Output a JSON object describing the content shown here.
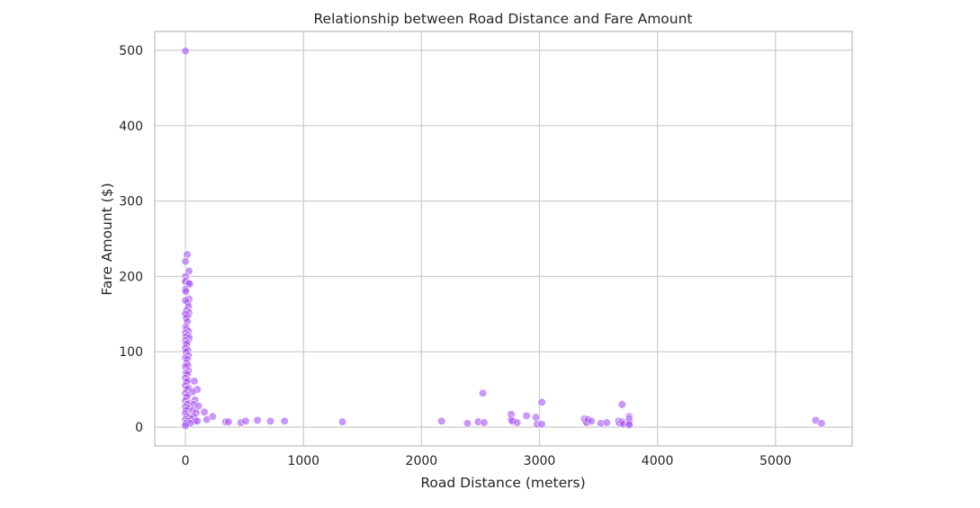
{
  "chart_data": {
    "type": "scatter",
    "title": "Relationship between Road Distance and Fare Amount",
    "xlabel": "Road Distance (meters)",
    "ylabel": "Fare Amount ($)",
    "xlim": [
      -260,
      5650
    ],
    "ylim": [
      -25,
      525
    ],
    "xticks": [
      0,
      1000,
      2000,
      3000,
      4000,
      5000
    ],
    "yticks": [
      0,
      100,
      200,
      300,
      400,
      500
    ],
    "grid": true,
    "point_color": "#a855f7",
    "points": [
      {
        "x": 0,
        "y": 499
      },
      {
        "x": 15,
        "y": 229
      },
      {
        "x": 0,
        "y": 220
      },
      {
        "x": 30,
        "y": 207
      },
      {
        "x": 0,
        "y": 200
      },
      {
        "x": 5,
        "y": 195
      },
      {
        "x": 0,
        "y": 193
      },
      {
        "x": 25,
        "y": 191
      },
      {
        "x": 35,
        "y": 190
      },
      {
        "x": 0,
        "y": 183
      },
      {
        "x": 3,
        "y": 180
      },
      {
        "x": 30,
        "y": 170
      },
      {
        "x": 20,
        "y": 165
      },
      {
        "x": 0,
        "y": 168
      },
      {
        "x": 25,
        "y": 160
      },
      {
        "x": 10,
        "y": 155
      },
      {
        "x": 30,
        "y": 152
      },
      {
        "x": 20,
        "y": 148
      },
      {
        "x": 0,
        "y": 150
      },
      {
        "x": 8,
        "y": 145
      },
      {
        "x": 15,
        "y": 140
      },
      {
        "x": 2,
        "y": 133
      },
      {
        "x": 10,
        "y": 130
      },
      {
        "x": 25,
        "y": 127
      },
      {
        "x": 0,
        "y": 125
      },
      {
        "x": 20,
        "y": 122
      },
      {
        "x": 5,
        "y": 120
      },
      {
        "x": 30,
        "y": 118
      },
      {
        "x": 0,
        "y": 115
      },
      {
        "x": 15,
        "y": 112
      },
      {
        "x": 8,
        "y": 110
      },
      {
        "x": 0,
        "y": 105
      },
      {
        "x": 20,
        "y": 102
      },
      {
        "x": 5,
        "y": 100
      },
      {
        "x": 25,
        "y": 95
      },
      {
        "x": 0,
        "y": 92
      },
      {
        "x": 15,
        "y": 90
      },
      {
        "x": 10,
        "y": 85
      },
      {
        "x": 20,
        "y": 82
      },
      {
        "x": 0,
        "y": 80
      },
      {
        "x": 25,
        "y": 75
      },
      {
        "x": 5,
        "y": 72
      },
      {
        "x": 15,
        "y": 70
      },
      {
        "x": 0,
        "y": 65
      },
      {
        "x": 20,
        "y": 62
      },
      {
        "x": 10,
        "y": 60
      },
      {
        "x": 75,
        "y": 61
      },
      {
        "x": 0,
        "y": 55
      },
      {
        "x": 25,
        "y": 52
      },
      {
        "x": 15,
        "y": 50
      },
      {
        "x": 100,
        "y": 50
      },
      {
        "x": 0,
        "y": 45
      },
      {
        "x": 60,
        "y": 47
      },
      {
        "x": 20,
        "y": 42
      },
      {
        "x": 10,
        "y": 40
      },
      {
        "x": 0,
        "y": 35
      },
      {
        "x": 80,
        "y": 36
      },
      {
        "x": 25,
        "y": 32
      },
      {
        "x": 15,
        "y": 30
      },
      {
        "x": 70,
        "y": 30
      },
      {
        "x": 0,
        "y": 27
      },
      {
        "x": 110,
        "y": 28
      },
      {
        "x": 20,
        "y": 25
      },
      {
        "x": 5,
        "y": 22
      },
      {
        "x": 60,
        "y": 22
      },
      {
        "x": 0,
        "y": 18
      },
      {
        "x": 90,
        "y": 19
      },
      {
        "x": 15,
        "y": 15
      },
      {
        "x": 30,
        "y": 13
      },
      {
        "x": 70,
        "y": 14
      },
      {
        "x": 0,
        "y": 10
      },
      {
        "x": 50,
        "y": 11
      },
      {
        "x": 20,
        "y": 8
      },
      {
        "x": 80,
        "y": 8
      },
      {
        "x": 5,
        "y": 5
      },
      {
        "x": 40,
        "y": 5
      },
      {
        "x": 0,
        "y": 2
      },
      {
        "x": 100,
        "y": 8
      },
      {
        "x": 160,
        "y": 20
      },
      {
        "x": 230,
        "y": 14
      },
      {
        "x": 180,
        "y": 10
      },
      {
        "x": 340,
        "y": 7
      },
      {
        "x": 365,
        "y": 7
      },
      {
        "x": 470,
        "y": 6
      },
      {
        "x": 510,
        "y": 8
      },
      {
        "x": 610,
        "y": 9
      },
      {
        "x": 720,
        "y": 8
      },
      {
        "x": 840,
        "y": 8
      },
      {
        "x": 1330,
        "y": 7
      },
      {
        "x": 2170,
        "y": 8
      },
      {
        "x": 2390,
        "y": 5
      },
      {
        "x": 2480,
        "y": 7
      },
      {
        "x": 2520,
        "y": 45
      },
      {
        "x": 2530,
        "y": 6
      },
      {
        "x": 2760,
        "y": 17
      },
      {
        "x": 2760,
        "y": 10
      },
      {
        "x": 2770,
        "y": 8
      },
      {
        "x": 2810,
        "y": 6
      },
      {
        "x": 2890,
        "y": 15
      },
      {
        "x": 2970,
        "y": 13
      },
      {
        "x": 2980,
        "y": 4
      },
      {
        "x": 3020,
        "y": 33
      },
      {
        "x": 3020,
        "y": 4
      },
      {
        "x": 3380,
        "y": 11
      },
      {
        "x": 3390,
        "y": 8
      },
      {
        "x": 3400,
        "y": 6
      },
      {
        "x": 3410,
        "y": 10
      },
      {
        "x": 3440,
        "y": 8
      },
      {
        "x": 3520,
        "y": 5
      },
      {
        "x": 3570,
        "y": 6
      },
      {
        "x": 3670,
        "y": 8
      },
      {
        "x": 3680,
        "y": 5
      },
      {
        "x": 3700,
        "y": 30
      },
      {
        "x": 3700,
        "y": 7
      },
      {
        "x": 3710,
        "y": 4
      },
      {
        "x": 3760,
        "y": 14
      },
      {
        "x": 3760,
        "y": 11
      },
      {
        "x": 3760,
        "y": 8
      },
      {
        "x": 3760,
        "y": 5
      },
      {
        "x": 3760,
        "y": 3
      },
      {
        "x": 5340,
        "y": 9
      },
      {
        "x": 5390,
        "y": 5
      }
    ]
  }
}
